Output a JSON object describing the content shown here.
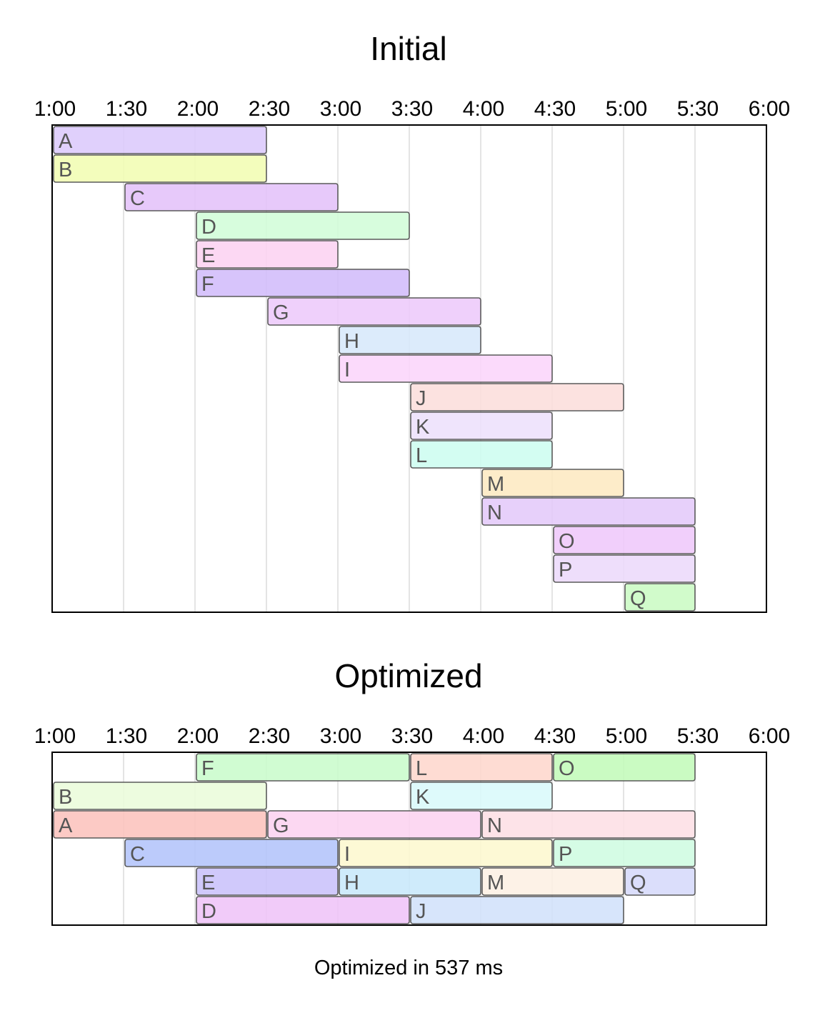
{
  "footer": {
    "text": "Optimized in 537 ms"
  },
  "chart_data": [
    {
      "type": "bar",
      "subtype": "gantt",
      "title": "Initial",
      "x_axis": {
        "position": "top",
        "min": "1:00",
        "max": "6:00",
        "ticks": [
          "1:00",
          "1:30",
          "2:00",
          "2:30",
          "3:00",
          "3:30",
          "4:00",
          "4:30",
          "5:00",
          "5:30",
          "6:00"
        ]
      },
      "grid": true,
      "tasks": [
        {
          "label": "A",
          "start": "1:00",
          "end": "2:30",
          "row": 0,
          "color": "#dccafc"
        },
        {
          "label": "B",
          "start": "1:00",
          "end": "2:30",
          "row": 1,
          "color": "#f1fdb3"
        },
        {
          "label": "C",
          "start": "1:30",
          "end": "3:00",
          "row": 2,
          "color": "#e4c2f9"
        },
        {
          "label": "D",
          "start": "2:00",
          "end": "3:30",
          "row": 3,
          "color": "#d2fdd8"
        },
        {
          "label": "E",
          "start": "2:00",
          "end": "3:00",
          "row": 4,
          "color": "#fcd3f1"
        },
        {
          "label": "F",
          "start": "2:00",
          "end": "3:30",
          "row": 5,
          "color": "#d1bcfb"
        },
        {
          "label": "G",
          "start": "2:30",
          "end": "4:00",
          "row": 6,
          "color": "#edc9fb"
        },
        {
          "label": "H",
          "start": "3:00",
          "end": "4:00",
          "row": 7,
          "color": "#d7e8fb"
        },
        {
          "label": "I",
          "start": "3:00",
          "end": "4:30",
          "row": 8,
          "color": "#fad5fa"
        },
        {
          "label": "J",
          "start": "3:30",
          "end": "5:00",
          "row": 9,
          "color": "#fcdedc"
        },
        {
          "label": "K",
          "start": "3:30",
          "end": "4:30",
          "row": 10,
          "color": "#ede0fc"
        },
        {
          "label": "L",
          "start": "3:30",
          "end": "4:30",
          "row": 11,
          "color": "#cdfdf0"
        },
        {
          "label": "M",
          "start": "4:00",
          "end": "5:00",
          "row": 12,
          "color": "#fde9c2"
        },
        {
          "label": "N",
          "start": "4:00",
          "end": "5:30",
          "row": 13,
          "color": "#e4c9f9"
        },
        {
          "label": "O",
          "start": "4:30",
          "end": "5:30",
          "row": 14,
          "color": "#efc8fb"
        },
        {
          "label": "P",
          "start": "4:30",
          "end": "5:30",
          "row": 15,
          "color": "#ecdafb"
        },
        {
          "label": "Q",
          "start": "5:00",
          "end": "5:30",
          "row": 16,
          "color": "#cbfbc4"
        }
      ]
    },
    {
      "type": "bar",
      "subtype": "gantt",
      "title": "Optimized",
      "x_axis": {
        "position": "top",
        "min": "1:00",
        "max": "6:00",
        "ticks": [
          "1:00",
          "1:30",
          "2:00",
          "2:30",
          "3:00",
          "3:30",
          "4:00",
          "4:30",
          "5:00",
          "5:30",
          "6:00"
        ]
      },
      "grid": true,
      "tasks": [
        {
          "label": "F",
          "start": "2:00",
          "end": "3:30",
          "row": 0,
          "color": "#c9fccc"
        },
        {
          "label": "L",
          "start": "3:30",
          "end": "4:30",
          "row": 0,
          "color": "#fed7cd"
        },
        {
          "label": "O",
          "start": "4:30",
          "end": "5:30",
          "row": 0,
          "color": "#c3fbba"
        },
        {
          "label": "B",
          "start": "1:00",
          "end": "2:30",
          "row": 1,
          "color": "#ebfcdb"
        },
        {
          "label": "K",
          "start": "3:30",
          "end": "4:30",
          "row": 1,
          "color": "#daf9fb"
        },
        {
          "label": "A",
          "start": "1:00",
          "end": "2:30",
          "row": 2,
          "color": "#fcc3bd"
        },
        {
          "label": "G",
          "start": "2:30",
          "end": "4:00",
          "row": 2,
          "color": "#fcd3f0"
        },
        {
          "label": "N",
          "start": "4:00",
          "end": "5:30",
          "row": 2,
          "color": "#fddfe5"
        },
        {
          "label": "C",
          "start": "1:30",
          "end": "3:00",
          "row": 3,
          "color": "#b3c4fb"
        },
        {
          "label": "I",
          "start": "3:00",
          "end": "4:30",
          "row": 3,
          "color": "#fdf8cf"
        },
        {
          "label": "P",
          "start": "4:30",
          "end": "5:30",
          "row": 3,
          "color": "#cffce1"
        },
        {
          "label": "E",
          "start": "2:00",
          "end": "3:00",
          "row": 4,
          "color": "#c9c1fa"
        },
        {
          "label": "H",
          "start": "3:00",
          "end": "4:00",
          "row": 4,
          "color": "#c8e8fb"
        },
        {
          "label": "M",
          "start": "4:00",
          "end": "5:00",
          "row": 4,
          "color": "#fdf0e4"
        },
        {
          "label": "Q",
          "start": "5:00",
          "end": "5:30",
          "row": 4,
          "color": "#d6d9fb"
        },
        {
          "label": "D",
          "start": "2:00",
          "end": "3:30",
          "row": 5,
          "color": "#efc4f8"
        },
        {
          "label": "J",
          "start": "3:30",
          "end": "5:00",
          "row": 5,
          "color": "#d2e1fa"
        }
      ]
    }
  ]
}
